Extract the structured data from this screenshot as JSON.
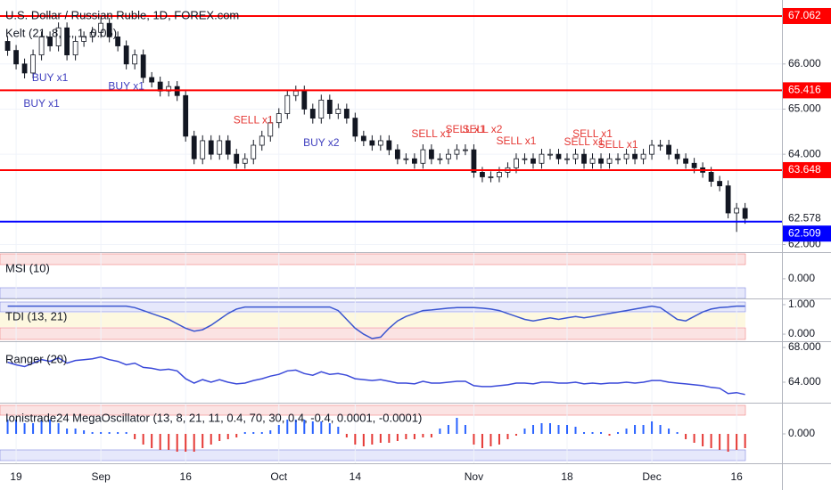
{
  "chart_data": [
    {
      "type": "candlestick",
      "title": "U.S. Dollar / Russian Ruble, 1D, FOREX.com",
      "subtitle": "Kelt (21, 8, 1, 1, 0.05)",
      "open": [
        66.5,
        66.3,
        66.0,
        65.8,
        66.2,
        66.6,
        66.4,
        66.8,
        66.2,
        66.5,
        66.6,
        66.7,
        66.9,
        66.6,
        66.4,
        66.0,
        66.2,
        65.7,
        65.6,
        65.4,
        65.5,
        65.3,
        64.4,
        63.9,
        64.3,
        64.0,
        64.3,
        64.0,
        63.8,
        63.9,
        64.2,
        64.4,
        64.7,
        64.9,
        65.3,
        65.4,
        65.0,
        64.8,
        65.2,
        64.9,
        65.0,
        64.8,
        64.4,
        64.3,
        64.2,
        64.3,
        64.1,
        63.9,
        63.9,
        63.8,
        64.1,
        63.9,
        63.9,
        64.0,
        64.1,
        64.1,
        63.6,
        63.5,
        63.5,
        63.6,
        63.7,
        63.9,
        63.9,
        63.8,
        64.0,
        64.0,
        63.9,
        63.9,
        64.0,
        63.8,
        63.9,
        63.8,
        63.9,
        63.9,
        64.0,
        63.9,
        64.0,
        64.2,
        64.2,
        64.0,
        63.9,
        63.8,
        63.7,
        63.6,
        63.4,
        63.3,
        62.7,
        62.8
      ],
      "high": [
        66.62,
        66.42,
        66.12,
        66.32,
        66.72,
        66.72,
        66.92,
        66.92,
        66.62,
        66.72,
        66.82,
        67.02,
        67.02,
        66.72,
        66.52,
        66.32,
        66.32,
        65.82,
        65.72,
        65.62,
        65.62,
        65.42,
        64.52,
        64.42,
        64.42,
        64.42,
        64.42,
        64.12,
        64.02,
        64.32,
        64.52,
        64.82,
        65.02,
        65.42,
        65.52,
        65.52,
        65.12,
        65.32,
        65.32,
        65.12,
        65.12,
        64.92,
        64.52,
        64.42,
        64.42,
        64.42,
        64.22,
        64.02,
        64.02,
        64.22,
        64.22,
        64.02,
        64.12,
        64.22,
        64.22,
        64.22,
        63.72,
        63.62,
        63.72,
        63.82,
        64.02,
        64.02,
        64.02,
        64.12,
        64.12,
        64.12,
        64.02,
        64.12,
        64.12,
        64.02,
        64.02,
        64.02,
        64.02,
        64.12,
        64.12,
        64.12,
        64.32,
        64.32,
        64.32,
        64.12,
        64.02,
        63.92,
        63.82,
        63.72,
        63.52,
        63.42,
        62.92,
        62.92
      ],
      "low": [
        66.18,
        65.88,
        65.68,
        65.68,
        66.08,
        66.28,
        66.28,
        66.08,
        66.08,
        66.38,
        66.48,
        66.58,
        66.48,
        66.28,
        65.88,
        65.88,
        65.58,
        65.48,
        65.28,
        65.28,
        65.18,
        64.28,
        63.78,
        63.78,
        63.88,
        63.88,
        63.88,
        63.68,
        63.68,
        63.78,
        64.08,
        64.28,
        64.58,
        64.78,
        65.18,
        64.88,
        64.68,
        64.68,
        64.78,
        64.78,
        64.68,
        64.28,
        64.18,
        64.08,
        64.08,
        63.98,
        63.78,
        63.78,
        63.68,
        63.68,
        63.78,
        63.78,
        63.78,
        63.88,
        63.98,
        63.48,
        63.38,
        63.38,
        63.38,
        63.48,
        63.58,
        63.78,
        63.68,
        63.68,
        63.88,
        63.78,
        63.78,
        63.78,
        63.68,
        63.68,
        63.68,
        63.68,
        63.78,
        63.78,
        63.78,
        63.78,
        63.88,
        64.08,
        63.88,
        63.78,
        63.68,
        63.58,
        63.48,
        63.28,
        63.18,
        62.58,
        62.28,
        62.46
      ],
      "close": [
        66.3,
        66.0,
        65.8,
        66.2,
        66.6,
        66.4,
        66.8,
        66.2,
        66.5,
        66.6,
        66.7,
        66.9,
        66.6,
        66.4,
        66.0,
        66.2,
        65.7,
        65.6,
        65.4,
        65.5,
        65.3,
        64.4,
        63.9,
        64.3,
        64.0,
        64.3,
        64.0,
        63.8,
        63.9,
        64.2,
        64.4,
        64.7,
        64.9,
        65.3,
        65.4,
        65.0,
        64.8,
        65.2,
        64.9,
        65.0,
        64.8,
        64.4,
        64.3,
        64.2,
        64.3,
        64.1,
        63.9,
        63.9,
        63.8,
        64.1,
        63.9,
        63.9,
        64.0,
        64.1,
        64.1,
        63.6,
        63.5,
        63.5,
        63.6,
        63.7,
        63.9,
        63.9,
        63.8,
        64.0,
        64.0,
        63.9,
        63.9,
        64.0,
        63.8,
        63.9,
        63.8,
        63.9,
        63.9,
        64.0,
        63.9,
        64.0,
        64.2,
        64.2,
        64.0,
        63.9,
        63.8,
        63.7,
        63.6,
        63.4,
        63.3,
        62.7,
        62.8,
        62.58
      ],
      "color_up": "#ffffff",
      "color_down": "#131722",
      "xlim": [
        -0.9,
        91.35
      ],
      "xticks": [
        {
          "value": 1,
          "label": "19"
        },
        {
          "value": 11,
          "label": "Sep"
        },
        {
          "value": 21,
          "label": "16"
        },
        {
          "value": 32,
          "label": "Oct"
        },
        {
          "value": 41,
          "label": "14"
        },
        {
          "value": 55,
          "label": "Nov"
        },
        {
          "value": 66,
          "label": "18"
        },
        {
          "value": 76,
          "label": "Dec"
        },
        {
          "value": 86,
          "label": "16"
        }
      ],
      "ylim": [
        61.832,
        67.417
      ],
      "yticks": [
        {
          "value": 62,
          "label": "62.000"
        },
        {
          "value": 64,
          "label": "64.000"
        },
        {
          "value": 65,
          "label": "65.000"
        },
        {
          "value": 66,
          "label": "66.000"
        }
      ],
      "grid": true,
      "levels": [
        {
          "value": 67.062,
          "color": "#ff0000"
        },
        {
          "value": 65.416,
          "color": "#ff0000"
        },
        {
          "value": 63.648,
          "color": "#ff0000"
        },
        {
          "value": 62.509,
          "color": "#0000ff"
        }
      ],
      "last_price": 62.578,
      "annotations": [
        {
          "text": "BUY x1",
          "x": 4,
          "y": 65.11,
          "color": "#3f3fbf"
        },
        {
          "text": "BUY x1",
          "x": 5,
          "y": 65.68,
          "color": "#3f3fbf"
        },
        {
          "text": "BUY x1",
          "x": 14,
          "y": 65.5,
          "color": "#3f3fbf"
        },
        {
          "text": "BUY x2",
          "x": 37,
          "y": 64.24,
          "color": "#3f3fbf"
        },
        {
          "text": "SELL x1",
          "x": 29,
          "y": 64.75,
          "color": "#e53935"
        },
        {
          "text": "SELL x1",
          "x": 50,
          "y": 64.44,
          "color": "#e53935"
        },
        {
          "text": "SELL x1",
          "x": 54,
          "y": 64.54,
          "color": "#e53935"
        },
        {
          "text": "SELL x2",
          "x": 56,
          "y": 64.54,
          "color": "#e53935"
        },
        {
          "text": "SELL x1",
          "x": 60,
          "y": 64.28,
          "color": "#e53935"
        },
        {
          "text": "SELL x1",
          "x": 68,
          "y": 64.26,
          "color": "#e53935"
        },
        {
          "text": "SELL x1",
          "x": 69,
          "y": 64.44,
          "color": "#e53935"
        },
        {
          "text": "SELL x1",
          "x": 72,
          "y": 64.2,
          "color": "#e53935"
        }
      ]
    },
    {
      "type": "empty",
      "title": "MSI (10)",
      "ylim": [
        -0.85,
        1.15
      ],
      "yticks": [
        {
          "value": 0,
          "label": "0.000"
        }
      ]
    },
    {
      "type": "line",
      "title": "TDI (13, 21)",
      "color": "#3a55d0",
      "values": [
        0.95,
        0.95,
        0.95,
        0.95,
        0.95,
        0.95,
        0.95,
        0.95,
        0.95,
        0.95,
        0.95,
        0.95,
        0.95,
        0.95,
        0.95,
        0.9,
        0.8,
        0.7,
        0.6,
        0.5,
        0.35,
        0.2,
        0.1,
        0.15,
        0.3,
        0.5,
        0.7,
        0.85,
        0.92,
        0.92,
        0.92,
        0.92,
        0.92,
        0.92,
        0.92,
        0.92,
        0.92,
        0.92,
        0.92,
        0.8,
        0.5,
        0.2,
        0.0,
        -0.15,
        -0.1,
        0.2,
        0.45,
        0.6,
        0.7,
        0.8,
        0.82,
        0.85,
        0.88,
        0.9,
        0.9,
        0.9,
        0.88,
        0.85,
        0.8,
        0.7,
        0.6,
        0.5,
        0.45,
        0.5,
        0.55,
        0.5,
        0.55,
        0.6,
        0.55,
        0.6,
        0.65,
        0.7,
        0.75,
        0.8,
        0.85,
        0.9,
        0.95,
        0.9,
        0.7,
        0.5,
        0.45,
        0.6,
        0.75,
        0.85,
        0.9,
        0.92,
        0.95,
        0.95
      ],
      "ylim": [
        -0.24,
        1.21
      ],
      "yticks": [
        {
          "value": 1,
          "label": "1.000"
        },
        {
          "value": 0,
          "label": "0.000"
        }
      ]
    },
    {
      "type": "line",
      "title": "Ranger (20)",
      "color": "#3a49d9",
      "values": [
        66.3,
        66.0,
        65.8,
        66.2,
        66.6,
        66.4,
        66.8,
        66.2,
        66.5,
        66.6,
        66.7,
        66.9,
        66.6,
        66.4,
        66.0,
        66.2,
        65.7,
        65.6,
        65.4,
        65.5,
        65.3,
        64.4,
        63.9,
        64.3,
        64.0,
        64.3,
        64.0,
        63.8,
        63.9,
        64.2,
        64.4,
        64.7,
        64.9,
        65.3,
        65.4,
        65.0,
        64.8,
        65.2,
        64.9,
        65.0,
        64.8,
        64.4,
        64.3,
        64.2,
        64.3,
        64.1,
        63.9,
        63.9,
        63.8,
        64.1,
        63.9,
        63.9,
        64.0,
        64.1,
        64.1,
        63.6,
        63.5,
        63.5,
        63.6,
        63.7,
        63.9,
        63.9,
        63.8,
        64.0,
        64.0,
        63.9,
        63.9,
        64.0,
        63.8,
        63.9,
        63.8,
        63.9,
        63.9,
        64.0,
        63.9,
        64.0,
        64.2,
        64.2,
        64.0,
        63.9,
        63.8,
        63.7,
        63.6,
        63.4,
        63.3,
        62.7,
        62.8,
        62.58
      ],
      "ylim": [
        61.64,
        68.72
      ],
      "yticks": [
        {
          "value": 68,
          "label": "68.000"
        },
        {
          "value": 64,
          "label": "64.000"
        }
      ]
    },
    {
      "type": "bar",
      "title": "Ionistrade24 MegaOscillator (13, 8, 21, 11, 0.4, 70, 30, 0.4, -0.4, 0.0001, -0.0001)",
      "color_up": "#2962ff",
      "color_down": "#e53935",
      "values": [
        0.8,
        0.8,
        0.6,
        0.6,
        0.8,
        0.8,
        0.6,
        0.3,
        0.3,
        0.2,
        0.1,
        0.1,
        0.1,
        0.1,
        0.1,
        -0.3,
        -0.6,
        -0.8,
        -0.9,
        -0.9,
        -1.0,
        -1.0,
        -1.0,
        -0.8,
        -0.6,
        -0.4,
        -0.3,
        -0.2,
        0.1,
        0.1,
        0.1,
        0.2,
        0.5,
        0.8,
        0.8,
        0.8,
        0.7,
        0.7,
        0.6,
        0.4,
        -0.2,
        -0.6,
        -0.7,
        -0.6,
        -0.5,
        -0.5,
        -0.4,
        -0.3,
        -0.3,
        -0.2,
        -0.2,
        0.3,
        0.5,
        0.9,
        0.5,
        -0.6,
        -0.8,
        -0.7,
        -0.6,
        -0.3,
        -0.1,
        0.3,
        0.5,
        0.6,
        0.6,
        0.5,
        0.5,
        0.4,
        0.1,
        0.1,
        0.1,
        -0.1,
        0.1,
        0.3,
        0.5,
        0.5,
        0.7,
        0.5,
        0.3,
        0.1,
        -0.3,
        -0.5,
        -0.7,
        -0.8,
        -0.9,
        -1.0,
        -0.9,
        -0.8
      ],
      "ylim": [
        -1.65,
        1.75
      ],
      "yticks": [
        {
          "value": 0,
          "label": "0.000"
        }
      ]
    }
  ]
}
